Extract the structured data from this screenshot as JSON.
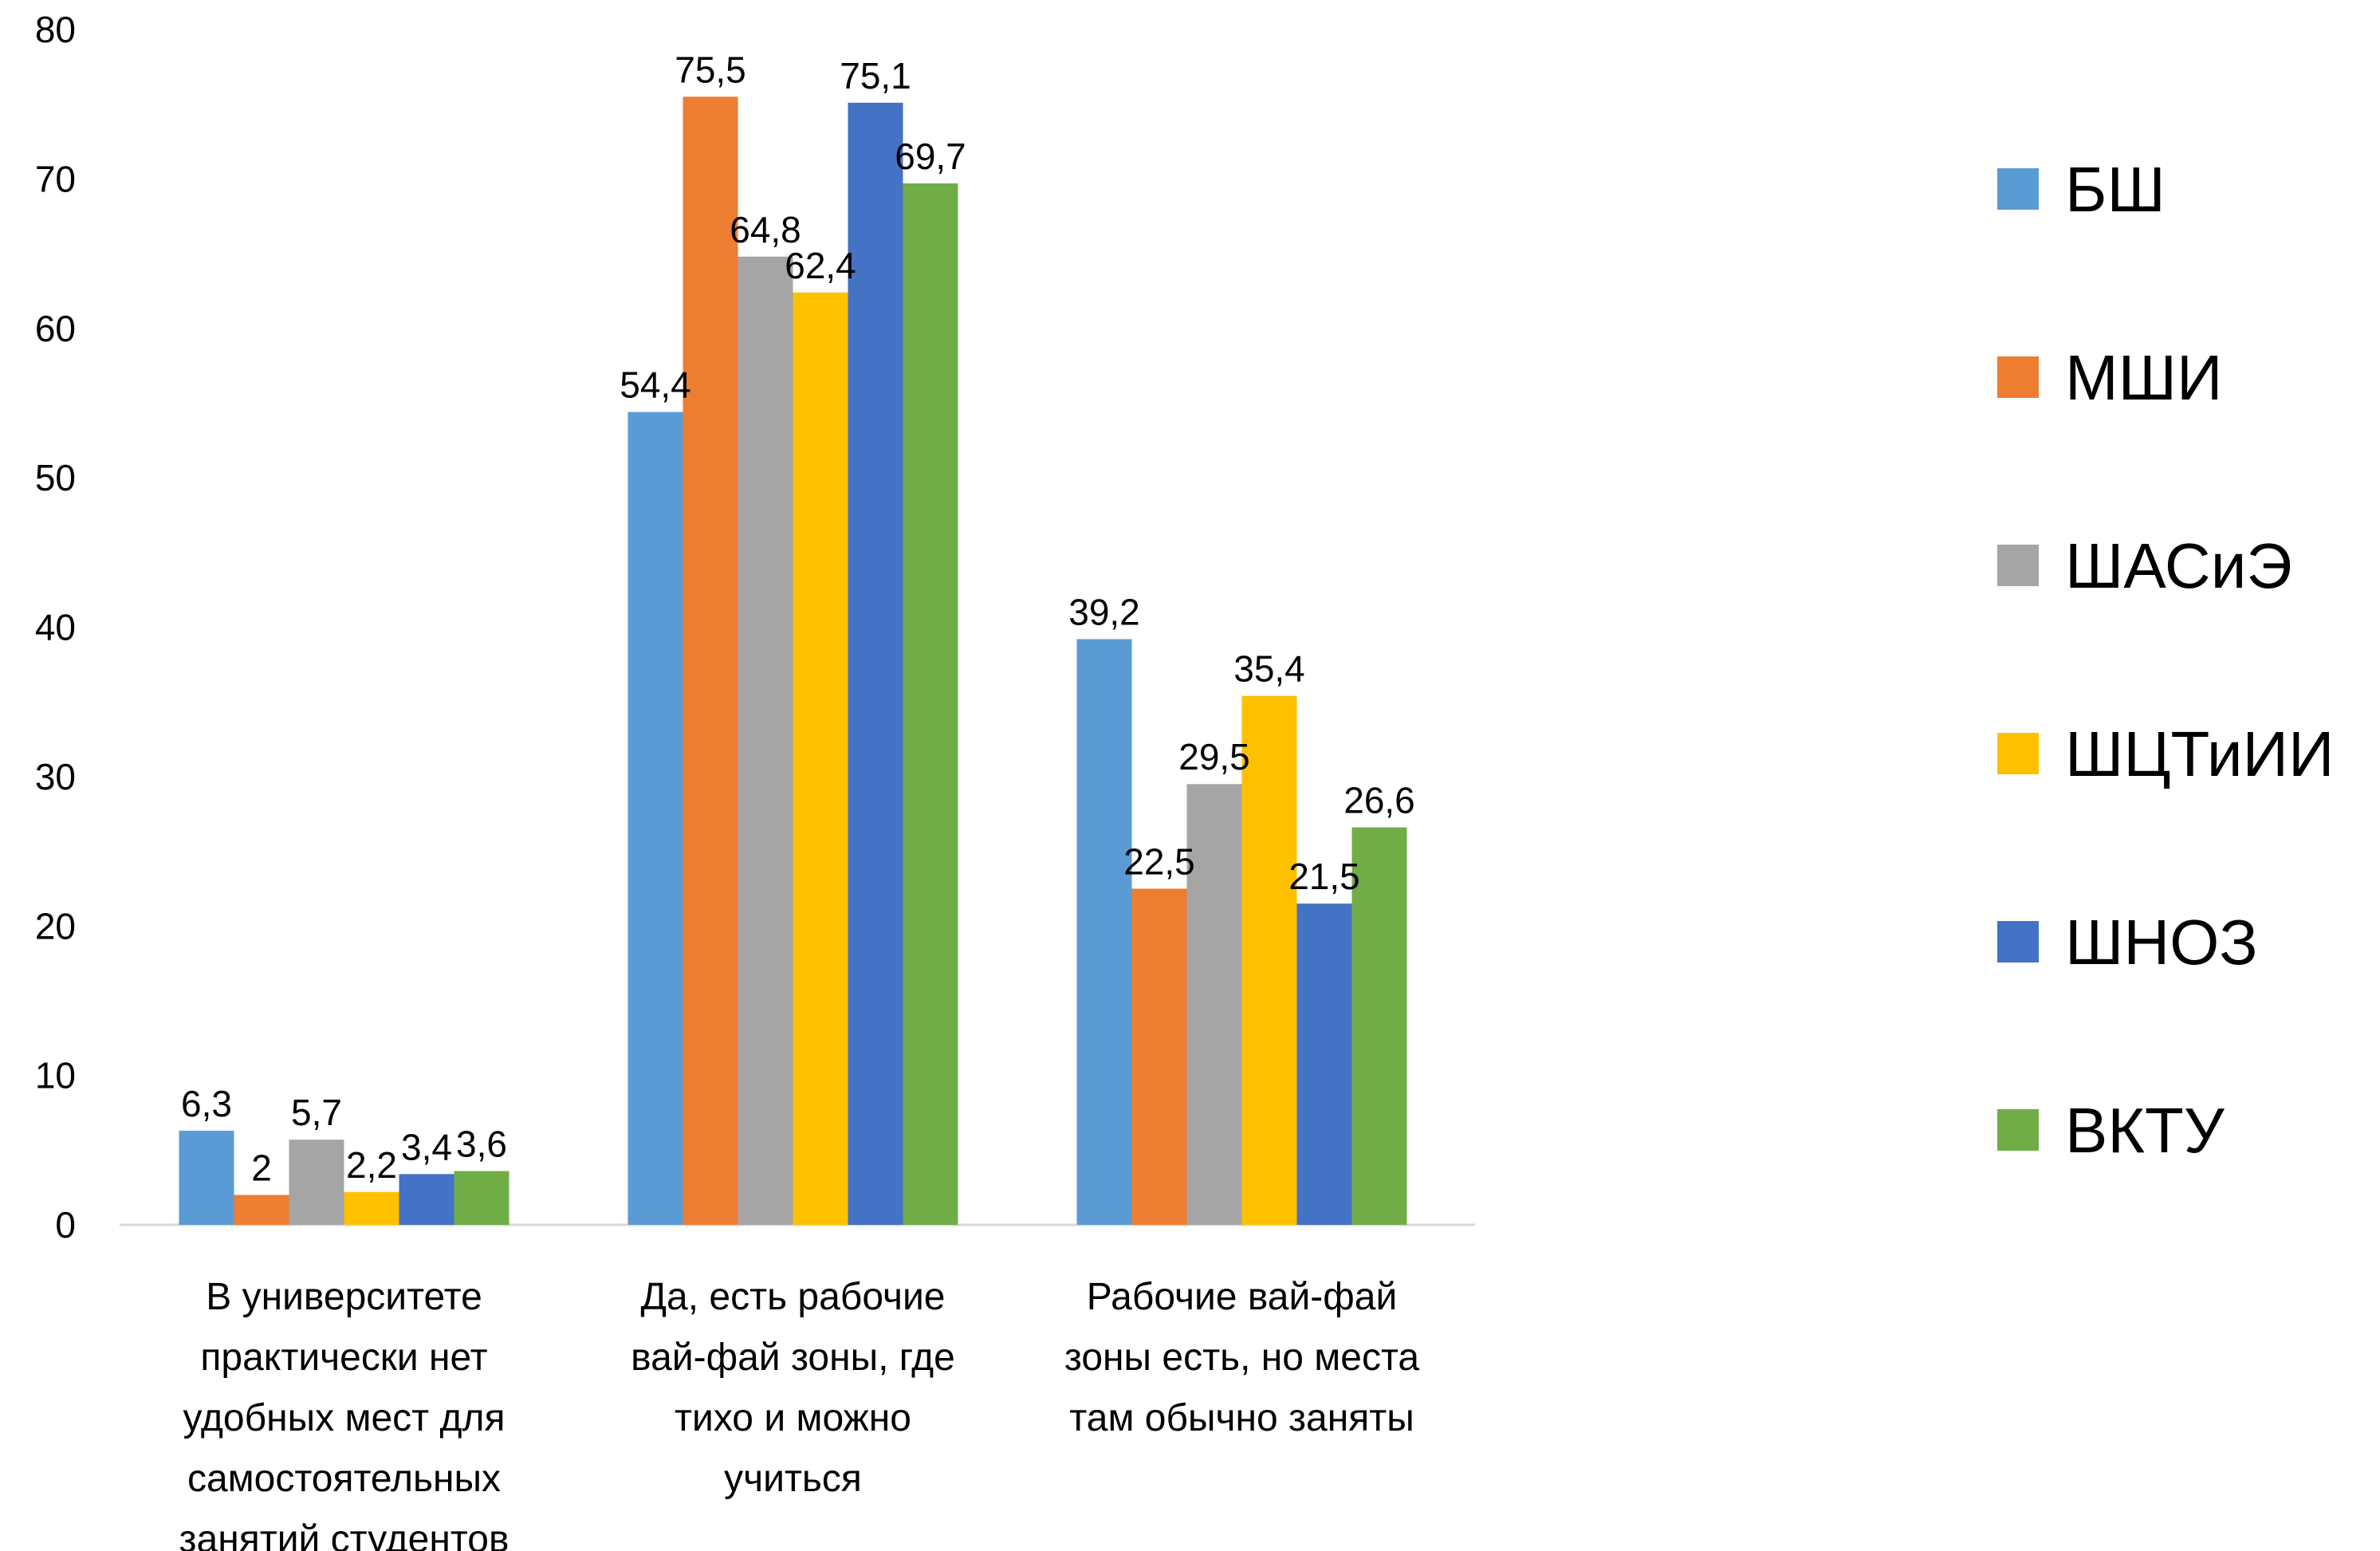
{
  "chart_data": {
    "type": "bar",
    "title": "",
    "xlabel": "",
    "ylabel": "",
    "ylim": [
      0,
      80
    ],
    "yticks": [
      "0",
      "10",
      "20",
      "30",
      "40",
      "50",
      "60",
      "70",
      "80"
    ],
    "grid": false,
    "legend_position": "right",
    "categories": [
      [
        "В университете",
        "практически нет",
        "удобных мест для",
        "самостоятельных",
        "занятий студентов"
      ],
      [
        "Да, есть рабочие",
        "вай-фай зоны, где",
        "тихо и можно",
        "учиться"
      ],
      [
        "Рабочие вай-фай",
        "зоны есть, но места",
        "там обычно заняты"
      ]
    ],
    "series": [
      {
        "name": "БШ",
        "color": "#5B9BD5",
        "values": [
          6.3,
          54.4,
          39.2
        ],
        "labels": [
          "6,3",
          "54,4",
          "39,2"
        ]
      },
      {
        "name": "МШИ",
        "color": "#ED7D31",
        "values": [
          2,
          75.5,
          22.5
        ],
        "labels": [
          "2",
          "75,5",
          "22,5"
        ]
      },
      {
        "name": "ШАСиЭ",
        "color": "#A5A5A5",
        "values": [
          5.7,
          64.8,
          29.5
        ],
        "labels": [
          "5,7",
          "64,8",
          "29,5"
        ]
      },
      {
        "name": "ШЦТиИИ",
        "color": "#FFC000",
        "values": [
          2.2,
          62.4,
          35.4
        ],
        "labels": [
          "2,2",
          "62,4",
          "35,4"
        ]
      },
      {
        "name": "ШНОЗ",
        "color": "#4472C4",
        "values": [
          3.4,
          75.1,
          21.5
        ],
        "labels": [
          "3,4",
          "75,1",
          "21,5"
        ]
      },
      {
        "name": "ВКТУ",
        "color": "#70AD47",
        "values": [
          3.6,
          69.7,
          26.6
        ],
        "labels": [
          "3,6",
          "69,7",
          "26,6"
        ]
      }
    ]
  }
}
